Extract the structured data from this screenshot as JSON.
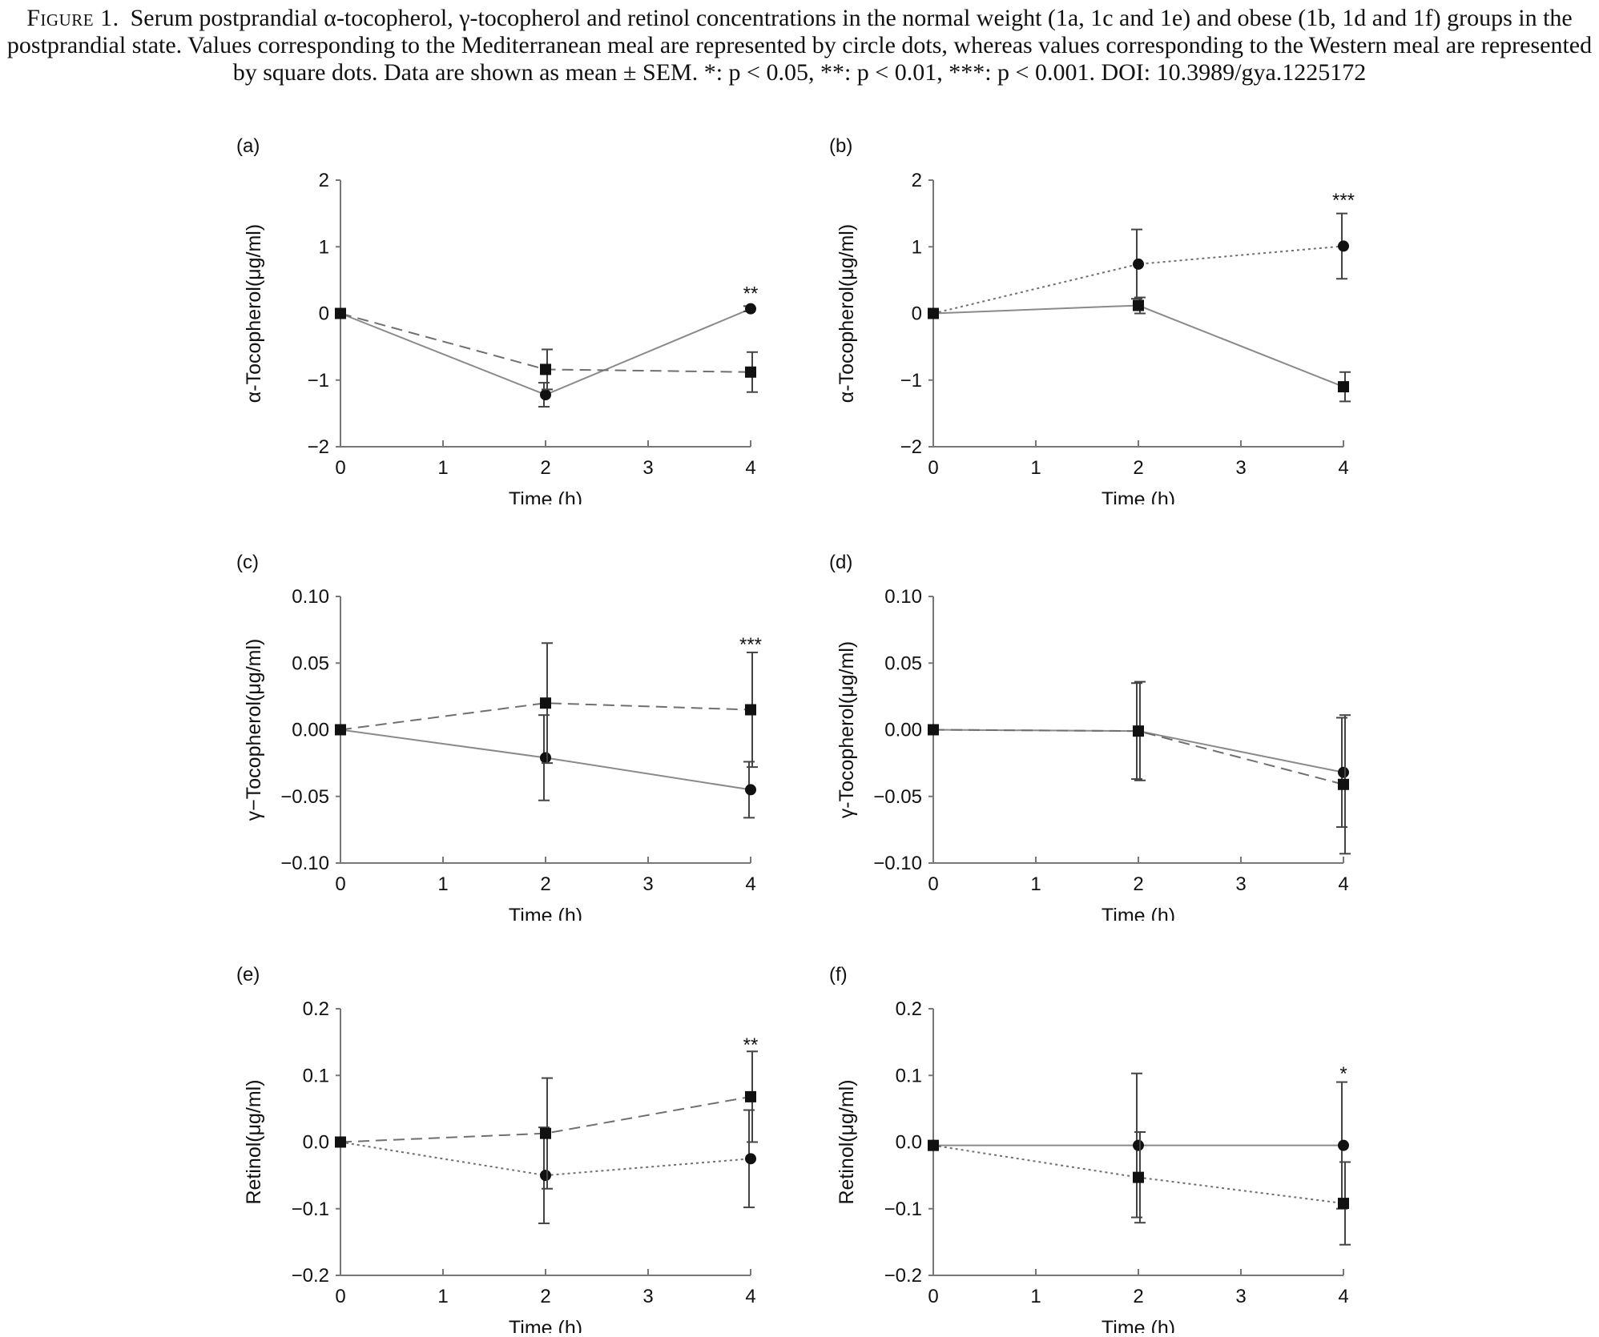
{
  "caption": {
    "label": "Figure 1.",
    "text": "Serum postprandial α-tocopherol, γ-tocopherol and retinol concentrations in the normal weight (1a, 1c and 1e) and obese (1b, 1d and 1f) groups in the postprandial state. Values corresponding to the Mediterranean meal are represented by circle dots, whereas values corresponding to the Western meal are represented by square dots. Data are shown as mean ± SEM. *: p < 0.05, **: p < 0.01, ***: p < 0.001. DOI: 10.3989/gya.1225172"
  },
  "chart_data": [
    {
      "type": "line",
      "panel": "(a)",
      "xlabel": "Time (h)",
      "ylabel": "α-Tocopherol(μg/ml)",
      "xlim": [
        0,
        4
      ],
      "xticks": [
        0,
        1,
        2,
        3,
        4
      ],
      "ylim": [
        -2,
        2
      ],
      "yticks": [
        -2,
        -1,
        0,
        1,
        2
      ],
      "ytick_labels": [
        "−2",
        "−1",
        "0",
        "1",
        "2"
      ],
      "grid": false,
      "series": [
        {
          "marker": "circle",
          "style": "solid",
          "x": [
            0,
            2,
            4
          ],
          "y": [
            0,
            -1.22,
            0.07
          ],
          "err": [
            0,
            0.18,
            0.04
          ]
        },
        {
          "marker": "square",
          "style": "dashed",
          "x": [
            0,
            2,
            4
          ],
          "y": [
            0,
            -0.84,
            -0.88
          ],
          "err": [
            0,
            0.3,
            0.3
          ]
        }
      ],
      "annotations": [
        {
          "x": 4,
          "y": 0.3,
          "text": "**"
        }
      ]
    },
    {
      "type": "line",
      "panel": "(b)",
      "xlabel": "Time (h)",
      "ylabel": "α-Tocopherol(μg/ml)",
      "xlim": [
        0,
        4
      ],
      "xticks": [
        0,
        1,
        2,
        3,
        4
      ],
      "ylim": [
        -2,
        2
      ],
      "yticks": [
        -2,
        -1,
        0,
        1,
        2
      ],
      "ytick_labels": [
        "−2",
        "−1",
        "0",
        "1",
        "2"
      ],
      "grid": false,
      "series": [
        {
          "marker": "circle",
          "style": "dotted",
          "x": [
            0,
            2,
            4
          ],
          "y": [
            0,
            0.74,
            1.01
          ],
          "err": [
            0,
            0.52,
            0.49
          ]
        },
        {
          "marker": "square",
          "style": "solid",
          "x": [
            0,
            2,
            4
          ],
          "y": [
            0,
            0.12,
            -1.1
          ],
          "err": [
            0,
            0.12,
            0.22
          ]
        }
      ],
      "annotations": [
        {
          "x": 4,
          "y": 1.7,
          "text": "***"
        }
      ]
    },
    {
      "type": "line",
      "panel": "(c)",
      "xlabel": "Time (h)",
      "ylabel": "γ−Tocopherol(μg/ml)",
      "xlim": [
        0,
        4
      ],
      "xticks": [
        0,
        1,
        2,
        3,
        4
      ],
      "ylim": [
        -0.1,
        0.1
      ],
      "yticks": [
        -0.1,
        -0.05,
        0,
        0.05,
        0.1
      ],
      "ytick_labels": [
        "−0.10",
        "−0.05",
        "0.00",
        "0.05",
        "0.10"
      ],
      "grid": false,
      "series": [
        {
          "marker": "circle",
          "style": "solid",
          "x": [
            0,
            2,
            4
          ],
          "y": [
            0,
            -0.021,
            -0.045
          ],
          "err": [
            0,
            0.032,
            0.021
          ]
        },
        {
          "marker": "square",
          "style": "dashed",
          "x": [
            0,
            2,
            4
          ],
          "y": [
            0,
            0.02,
            0.015
          ],
          "err": [
            0,
            0.045,
            0.043
          ]
        }
      ],
      "annotations": [
        {
          "x": 4,
          "y": 0.064,
          "text": "***"
        }
      ]
    },
    {
      "type": "line",
      "panel": "(d)",
      "xlabel": "Time (h)",
      "ylabel": "γ-Tocopherol(μg/ml)",
      "xlim": [
        0,
        4
      ],
      "xticks": [
        0,
        1,
        2,
        3,
        4
      ],
      "ylim": [
        -0.1,
        0.1
      ],
      "yticks": [
        -0.1,
        -0.05,
        0,
        0.05,
        0.1
      ],
      "ytick_labels": [
        "−0.10",
        "−0.05",
        "0.00",
        "0.05",
        "0.10"
      ],
      "grid": false,
      "series": [
        {
          "marker": "circle",
          "style": "solid",
          "x": [
            0,
            2,
            4
          ],
          "y": [
            0,
            -0.001,
            -0.032
          ],
          "err": [
            0,
            0.036,
            0.041
          ]
        },
        {
          "marker": "square",
          "style": "dashed",
          "x": [
            0,
            2,
            4
          ],
          "y": [
            0,
            -0.001,
            -0.041
          ],
          "err": [
            0,
            0.037,
            0.052
          ]
        }
      ],
      "annotations": []
    },
    {
      "type": "line",
      "panel": "(e)",
      "xlabel": "Time (h)",
      "ylabel": "Retinol(μg/ml)",
      "xlim": [
        0,
        4
      ],
      "xticks": [
        0,
        1,
        2,
        3,
        4
      ],
      "ylim": [
        -0.2,
        0.2
      ],
      "yticks": [
        -0.2,
        -0.1,
        0,
        0.1,
        0.2
      ],
      "ytick_labels": [
        "−0.2",
        "−0.1",
        "0.0",
        "0.1",
        "0.2"
      ],
      "grid": false,
      "series": [
        {
          "marker": "circle",
          "style": "dotted",
          "x": [
            0,
            2,
            4
          ],
          "y": [
            0,
            -0.05,
            -0.025
          ],
          "err": [
            0,
            0.072,
            0.073
          ]
        },
        {
          "marker": "square",
          "style": "dashed",
          "x": [
            0,
            2,
            4
          ],
          "y": [
            0,
            0.013,
            0.068
          ],
          "err": [
            0,
            0.083,
            0.068
          ]
        }
      ],
      "annotations": [
        {
          "x": 4,
          "y": 0.146,
          "text": "**"
        }
      ]
    },
    {
      "type": "line",
      "panel": "(f)",
      "xlabel": "Time (h)",
      "ylabel": "Retinol(μg/ml)",
      "xlim": [
        0,
        4
      ],
      "xticks": [
        0,
        1,
        2,
        3,
        4
      ],
      "ylim": [
        -0.2,
        0.2
      ],
      "yticks": [
        -0.2,
        -0.1,
        0,
        0.1,
        0.2
      ],
      "ytick_labels": [
        "−0.2",
        "−0.1",
        "0.0",
        "0.1",
        "0.2"
      ],
      "grid": false,
      "series": [
        {
          "marker": "circle",
          "style": "solid",
          "x": [
            0,
            2,
            4
          ],
          "y": [
            -0.005,
            -0.005,
            -0.005
          ],
          "err": [
            0,
            0.108,
            0.095
          ]
        },
        {
          "marker": "square",
          "style": "dotted",
          "x": [
            0,
            2,
            4
          ],
          "y": [
            -0.005,
            -0.053,
            -0.092
          ],
          "err": [
            0,
            0.068,
            0.062
          ]
        }
      ],
      "annotations": [
        {
          "x": 4,
          "y": 0.103,
          "text": "*"
        }
      ]
    }
  ]
}
